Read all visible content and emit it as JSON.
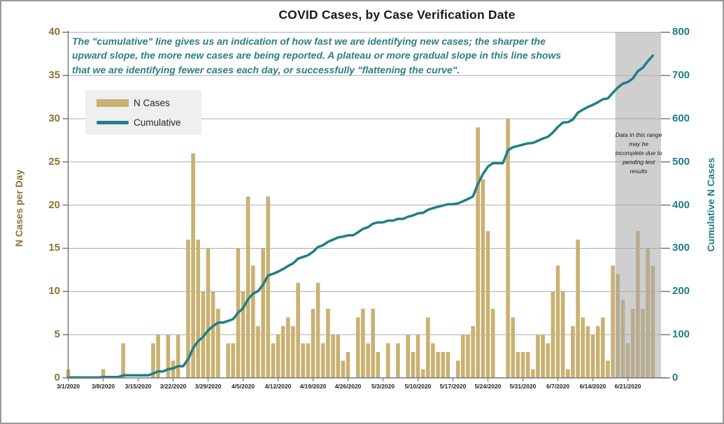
{
  "title": "COVID Cases, by Case Verification Date",
  "annotation": {
    "line1": "The \"cumulative\" line gives  us an indication of how fast we are identifying new cases; the sharper the",
    "line2": "upward slope, the more new cases are being reported. A plateau or more gradual slope in this line shows",
    "line3": "that we are identifying fewer cases each day, or successfully \"flattening the curve\"."
  },
  "legend": {
    "bar_label": "N Cases",
    "line_label": "Cumulative"
  },
  "axes": {
    "left": {
      "title": "N Cases per Day",
      "ticks": [
        "0",
        "5",
        "10",
        "15",
        "20",
        "25",
        "30",
        "35",
        "40"
      ]
    },
    "right": {
      "title": "Cumulative N Cases",
      "ticks": [
        "0",
        "100",
        "200",
        "300",
        "400",
        "500",
        "600",
        "700",
        "800"
      ]
    },
    "x": {
      "tick_labels": [
        "3/1/2020",
        "3/8/2020",
        "3/15/2020",
        "3/22/2020",
        "3/29/2020",
        "4/5/2020",
        "4/12/2020",
        "4/19/2020",
        "4/26/2020",
        "5/3/2020",
        "5/10/2020",
        "5/17/2020",
        "5/24/2020",
        "5/31/2020",
        "6/7/2020",
        "6/14/2020",
        "6/21/2020"
      ]
    }
  },
  "incomplete_note": "Data in this range  may be incomplete due to pending test results",
  "colors": {
    "bar": "#c9b172",
    "line": "#1f7f88",
    "left_axis": "#8a7434",
    "right_axis": "#1e7e87",
    "annotation": "#2b7f82",
    "grid": "#ababab",
    "axis_line": "#7a7a7a",
    "legend_bg": "#efefef",
    "incomplete_overlay": "rgba(168,168,168,0.55)"
  },
  "chart_data": {
    "type": "combo",
    "start_date": "3/1/2020",
    "end_date": "6/26/2020",
    "x_tick_labels": [
      "3/1/2020",
      "3/8/2020",
      "3/15/2020",
      "3/22/2020",
      "3/29/2020",
      "4/5/2020",
      "4/12/2020",
      "4/19/2020",
      "4/26/2020",
      "5/3/2020",
      "5/10/2020",
      "5/17/2020",
      "5/24/2020",
      "5/31/2020",
      "6/7/2020",
      "6/14/2020",
      "6/21/2020"
    ],
    "left_axis": {
      "label": "N Cases per Day",
      "min": 0,
      "max": 40,
      "tick_step": 5
    },
    "right_axis": {
      "label": "Cumulative N Cases",
      "min": 0,
      "max": 800,
      "tick_step": 100
    },
    "grid": true,
    "legend_position": "upper-left-inside",
    "series": [
      {
        "name": "N Cases",
        "type": "bar",
        "axis": "left",
        "values": [
          1,
          0,
          0,
          0,
          0,
          0,
          0,
          1,
          0,
          0,
          0,
          4,
          0,
          0,
          0,
          0,
          0,
          4,
          5,
          0,
          5,
          2,
          5,
          0,
          16,
          26,
          16,
          10,
          15,
          10,
          8,
          0,
          4,
          4,
          15,
          10,
          21,
          13,
          6,
          15,
          21,
          4,
          5,
          6,
          7,
          6,
          11,
          4,
          4,
          8,
          11,
          4,
          8,
          5,
          5,
          2,
          3,
          0,
          7,
          8,
          4,
          8,
          3,
          0,
          4,
          0,
          4,
          0,
          5,
          3,
          5,
          1,
          7,
          4,
          3,
          3,
          3,
          0,
          2,
          5,
          5,
          6,
          29,
          23,
          17,
          8,
          0,
          0,
          30,
          7,
          3,
          3,
          3,
          1,
          5,
          5,
          4,
          10,
          13,
          10,
          1,
          6,
          16,
          7,
          6,
          5,
          6,
          7,
          2,
          13,
          12,
          9,
          4,
          8,
          17,
          8,
          15,
          13
        ]
      },
      {
        "name": "Cumulative",
        "type": "line",
        "axis": "right",
        "derivation": "running_sum_of_N_Cases",
        "final_value": 746
      }
    ],
    "incomplete_range": {
      "start_date": "6/19/2020",
      "end_date": "6/26/2020",
      "start_index": 110
    }
  }
}
